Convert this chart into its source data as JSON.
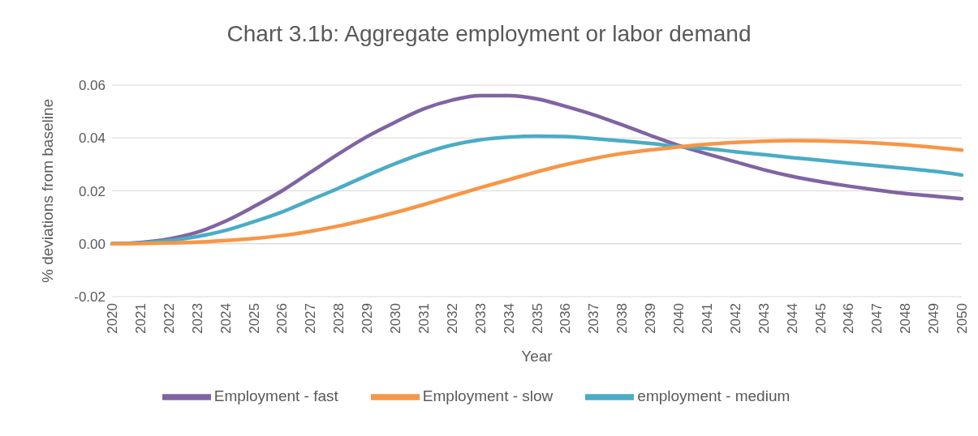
{
  "chart_data": {
    "type": "line",
    "title": "Chart 3.1b:  Aggregate employment or labor demand",
    "xlabel": "Year",
    "ylabel": "% deviations from baseline",
    "categories": [
      "2020",
      "2021",
      "2022",
      "2023",
      "2024",
      "2025",
      "2026",
      "2027",
      "2028",
      "2029",
      "2030",
      "2031",
      "2032",
      "2033",
      "2034",
      "2035",
      "2036",
      "2037",
      "2038",
      "2039",
      "2040",
      "2041",
      "2042",
      "2043",
      "2044",
      "2045",
      "2046",
      "2047",
      "2048",
      "2049",
      "2050"
    ],
    "series": [
      {
        "name": "Employment - fast",
        "color": "#8064a2",
        "values": [
          0,
          0.0005,
          0.0018,
          0.0043,
          0.0085,
          0.014,
          0.02,
          0.027,
          0.034,
          0.0405,
          0.046,
          0.051,
          0.0543,
          0.056,
          0.056,
          0.0548,
          0.052,
          0.0488,
          0.045,
          0.041,
          0.0372,
          0.034,
          0.031,
          0.028,
          0.0255,
          0.0235,
          0.0218,
          0.0203,
          0.019,
          0.018,
          0.017
        ]
      },
      {
        "name": "employment - medium",
        "color": "#4bacc6",
        "values": [
          0,
          0.0003,
          0.0012,
          0.0027,
          0.005,
          0.0083,
          0.012,
          0.0165,
          0.021,
          0.0258,
          0.0303,
          0.0342,
          0.0373,
          0.0393,
          0.0403,
          0.0407,
          0.0405,
          0.0398,
          0.0389,
          0.0379,
          0.0368,
          0.036,
          0.0348,
          0.0337,
          0.0326,
          0.0316,
          0.0305,
          0.0295,
          0.0285,
          0.0274,
          0.026
        ]
      },
      {
        "name": "Employment - slow",
        "color": "#f79646",
        "values": [
          0,
          0.0001,
          0.0003,
          0.0006,
          0.0012,
          0.002,
          0.0031,
          0.0047,
          0.0067,
          0.0091,
          0.0118,
          0.0148,
          0.018,
          0.0212,
          0.0242,
          0.0272,
          0.0299,
          0.0322,
          0.0341,
          0.0355,
          0.0366,
          0.0376,
          0.0383,
          0.0388,
          0.039,
          0.0389,
          0.0386,
          0.0381,
          0.0374,
          0.0365,
          0.0354
        ]
      }
    ],
    "ylim": [
      -0.02,
      0.06
    ],
    "yticks": [
      {
        "value": -0.02,
        "label": "-0.02"
      },
      {
        "value": 0,
        "label": "0.00"
      },
      {
        "value": 0.02,
        "label": "0.02"
      },
      {
        "value": 0.04,
        "label": "0.04"
      },
      {
        "value": 0.06,
        "label": "0.06"
      }
    ],
    "grid": "y",
    "legend": "bottom",
    "marker": "none",
    "line_style": "solid"
  }
}
